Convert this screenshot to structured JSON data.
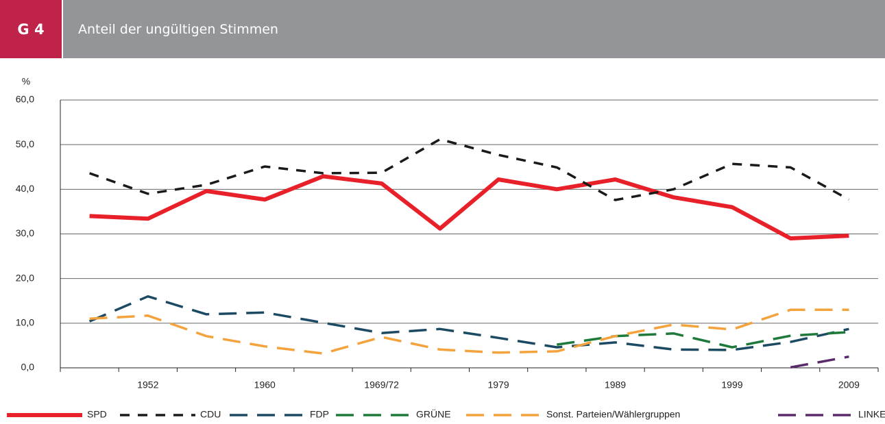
{
  "header": {
    "badge": "G 4",
    "title": "Anteil der ungültigen Stimmen"
  },
  "chart_data": {
    "type": "line",
    "y_label": "%",
    "categories": [
      null,
      "1952",
      null,
      "1960",
      null,
      "1969/72",
      null,
      "1979",
      null,
      "1989",
      null,
      "1999",
      null,
      "2009"
    ],
    "ylim": [
      0,
      60
    ],
    "yticks": [
      {
        "value": 0,
        "label": "0,0"
      },
      {
        "value": 10,
        "label": "10,0"
      },
      {
        "value": 20,
        "label": "20,0"
      },
      {
        "value": 30,
        "label": "30,0"
      },
      {
        "value": 40,
        "label": "40,0"
      },
      {
        "value": 50,
        "label": "50,0"
      },
      {
        "value": 60,
        "label": "60,0"
      }
    ],
    "grid": true,
    "series": [
      {
        "name": "SPD",
        "color": "#e8202a",
        "values": [
          34.0,
          33.4,
          39.6,
          37.7,
          42.9,
          41.3,
          31.2,
          42.2,
          40.0,
          42.2,
          38.2,
          36.0,
          29.0,
          29.6
        ]
      },
      {
        "name": "CDU",
        "color": "#1a1a1a",
        "values": [
          43.6,
          39.0,
          41.0,
          45.1,
          43.6,
          43.7,
          51.2,
          47.7,
          44.9,
          37.6,
          40.0,
          45.7,
          44.9,
          37.7
        ]
      },
      {
        "name": "FDP",
        "color": "#1b4a62",
        "values": [
          10.4,
          16.0,
          12.0,
          12.4,
          10.1,
          7.8,
          8.7,
          6.7,
          4.6,
          5.7,
          4.1,
          4.0,
          5.8,
          8.7
        ]
      },
      {
        "name": "GRÜNE",
        "color": "#1e7a3a",
        "values": [
          null,
          null,
          null,
          null,
          null,
          null,
          null,
          null,
          5.2,
          7.1,
          7.7,
          4.6,
          7.2,
          8.0
        ]
      },
      {
        "name": "Sonst. Parteien/Wählergruppen",
        "color": "#f4a23c",
        "values": [
          11.0,
          11.7,
          7.1,
          4.8,
          3.2,
          6.9,
          4.1,
          3.4,
          3.7,
          7.1,
          9.7,
          8.6,
          13.0,
          13.0
        ]
      },
      {
        "name": "LINKE",
        "color": "#5a2a6a",
        "values": [
          null,
          null,
          null,
          null,
          null,
          null,
          null,
          null,
          null,
          null,
          null,
          null,
          0.1,
          2.5
        ]
      }
    ]
  }
}
